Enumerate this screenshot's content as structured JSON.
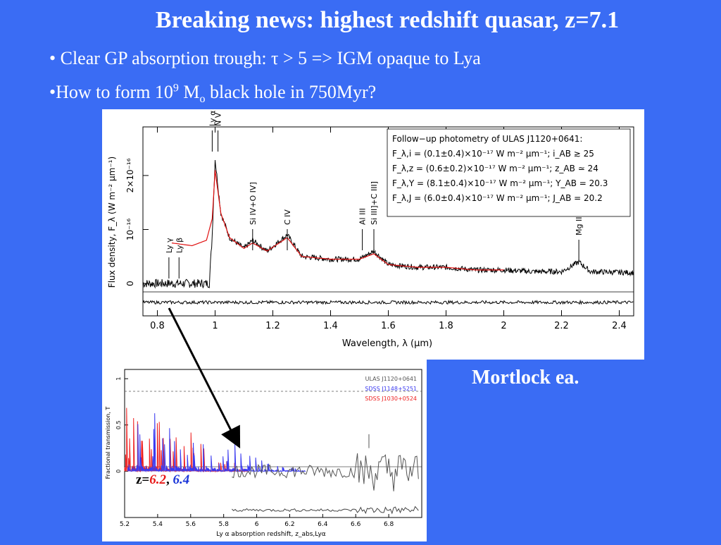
{
  "slide": {
    "title": "Breaking news: highest redshift quasar, z=7.1",
    "bullet1": "• Clear GP absorption trough: τ > 5 => IGM opaque to Lya",
    "bullet2_pre": "•How to form 10",
    "bullet2_sup": "9",
    "bullet2_mid": " M",
    "bullet2_sub": "o",
    "bullet2_post": " black hole in 750Myr?",
    "credit": "Mortlock ea.",
    "z_prefix": "z=",
    "z_red": "6.2",
    "z_sep": ", ",
    "z_blue": "6.4"
  },
  "chart_data": [
    {
      "type": "line",
      "xlabel": "Wavelength, λ (μm)",
      "ylabel": "Flux density, F_λ (W m⁻² μm⁻¹)",
      "xlim": [
        0.75,
        2.45
      ],
      "ylim": [
        -6e-17,
        2.9e-16
      ],
      "x_ticks": [
        "0.8",
        "1",
        "1.2",
        "1.4",
        "1.6",
        "1.8",
        "2",
        "2.2",
        "2.4"
      ],
      "y_ticks": [
        "0",
        "10⁻¹⁶",
        "2×10⁻¹⁶"
      ],
      "line_labels": [
        {
          "label": "Ly γ",
          "x": 0.84
        },
        {
          "label": "Ly β",
          "x": 0.875
        },
        {
          "label": "Ly α",
          "x": 0.99
        },
        {
          "label": "N V",
          "x": 1.01
        },
        {
          "label": "Si IV+O IV]",
          "x": 1.13
        },
        {
          "label": "C IV",
          "x": 1.25
        },
        {
          "label": "Al III",
          "x": 1.51
        },
        {
          "label": "Si III]+C III]",
          "x": 1.55
        },
        {
          "label": "Mg II",
          "x": 2.26
        }
      ],
      "legend_box": [
        "Follow−up photometry of ULAS J1120+0641:",
        "F_λ,i = (0.1±0.4)×10⁻¹⁷ W m⁻² μm⁻¹; i_AB ≳ 25",
        "F_λ,z = (0.6±0.2)×10⁻¹⁷ W m⁻² μm⁻¹; z_AB ≃ 24",
        "F_λ,Y = (8.1±0.4)×10⁻¹⁷ W m⁻² μm⁻¹; Y_AB = 20.3",
        "F_λ,J = (6.0±0.4)×10⁻¹⁷ W m⁻² μm⁻¹; J_AB = 20.2"
      ],
      "legend_placement": "top-right",
      "series": [
        {
          "color": "#000000",
          "x": [
            0.75,
            0.9,
            0.98,
            0.99,
            1.0,
            1.02,
            1.05,
            1.1,
            1.13,
            1.18,
            1.25,
            1.3,
            1.4,
            1.5,
            1.55,
            1.6,
            1.7,
            1.8,
            1.9,
            2.0,
            2.1,
            2.2,
            2.26,
            2.3,
            2.45
          ],
          "y": [
            0.0,
            0.0,
            0.0,
            9e-17,
            2.3e-16,
            1.3e-16,
            8.5e-17,
            6.5e-17,
            8e-17,
            6e-17,
            9e-17,
            5e-17,
            4.5e-17,
            4.5e-17,
            6e-17,
            3.5e-17,
            3e-17,
            3e-17,
            2.5e-17,
            2.5e-17,
            2.2e-17,
            2.2e-17,
            4e-17,
            2.2e-17,
            2e-17
          ]
        },
        {
          "color": "#e01010",
          "x": [
            0.85,
            0.92,
            0.97,
            0.99,
            1.0,
            1.02,
            1.05,
            1.1,
            1.13,
            1.18,
            1.25,
            1.3,
            1.4,
            1.5,
            1.55,
            1.6,
            1.7,
            1.8,
            1.9,
            2.0
          ],
          "y": [
            7.5e-17,
            7e-17,
            8e-17,
            1.2e-16,
            2.1e-16,
            1.3e-16,
            8.5e-17,
            6.5e-17,
            7.5e-17,
            6e-17,
            8.5e-17,
            5e-17,
            4.5e-17,
            4.5e-17,
            5.5e-17,
            3.5e-17,
            3e-17,
            3e-17,
            2.5e-17,
            2.5e-17
          ]
        }
      ]
    },
    {
      "type": "line",
      "xlabel": "Ly α absorption redshift, z_abs,Lyα",
      "ylabel": "Fractional transmission, T",
      "xlim": [
        5.2,
        7.0
      ],
      "ylim": [
        -0.5,
        1.1
      ],
      "x_ticks": [
        "5.2",
        "5.4",
        "5.6",
        "5.8",
        "6",
        "6.2",
        "6.4",
        "6.6",
        "6.8"
      ],
      "y_ticks": [
        "0",
        "0.5",
        "1"
      ],
      "legend_placement": "top-right",
      "series": [
        {
          "name": "ULAS J1120+0641",
          "color": "#555555"
        },
        {
          "name": "SDSS J1148+5251",
          "color": "#3a3af0"
        },
        {
          "name": "SDSS J1030+0524",
          "color": "#ee2020"
        }
      ]
    }
  ]
}
